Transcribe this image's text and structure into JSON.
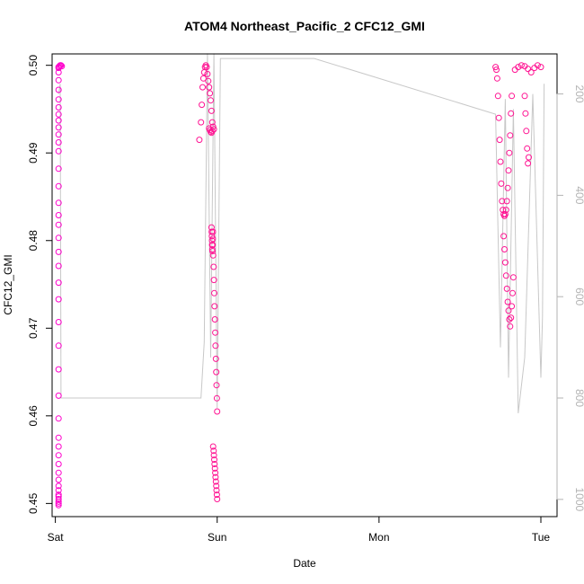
{
  "chart_data": {
    "type": "scatter",
    "title": "ATOM4 Northeast_Pacific_2 CFC12_GMI",
    "xlabel": "Date",
    "ylabel": "CFC12_GMI",
    "x_ticks": [
      "Sat",
      "Sun",
      "Mon",
      "Tue"
    ],
    "x_tick_days": [
      0,
      1,
      2,
      3
    ],
    "xlim": [
      -0.02,
      3.1
    ],
    "ylim": [
      0.4485,
      0.5013
    ],
    "y_ticks": [
      0.45,
      0.46,
      0.47,
      0.48,
      0.49,
      0.5
    ],
    "y2_ticks": [
      200,
      400,
      600,
      800,
      1000
    ],
    "y2lim": [
      1034,
      121
    ],
    "grid": false,
    "colors": {
      "point": "#ff1493",
      "point_alt": "#ff00cc",
      "altitude_line": "#c8c8c8",
      "axis": "#000000",
      "right_axis": "#b3b3b3"
    },
    "series": [
      {
        "marker": "open-circle",
        "segments": [
          {
            "x": [
              0.02,
              0.02,
              0.02,
              0.02,
              0.02,
              0.02,
              0.02,
              0.02,
              0.02,
              0.02,
              0.02,
              0.02,
              0.02,
              0.02,
              0.02,
              0.02,
              0.02,
              0.02,
              0.02,
              0.02,
              0.02,
              0.02,
              0.02,
              0.02,
              0.02,
              0.02,
              0.02,
              0.02,
              0.02,
              0.02,
              0.02,
              0.02,
              0.02,
              0.02,
              0.02,
              0.02,
              0.02,
              0.02,
              0.02,
              0.02,
              0.02
            ],
            "y": [
              0.4498,
              0.45,
              0.4502,
              0.4505,
              0.4508,
              0.451,
              0.4515,
              0.452,
              0.4527,
              0.4535,
              0.4545,
              0.4555,
              0.4565,
              0.4575,
              0.4597,
              0.4623,
              0.4653,
              0.468,
              0.4707,
              0.4733,
              0.4752,
              0.4771,
              0.4787,
              0.4803,
              0.4818,
              0.4829,
              0.4843,
              0.4862,
              0.4882,
              0.4902,
              0.4912,
              0.4921,
              0.4929,
              0.4937,
              0.4944,
              0.4952,
              0.4961,
              0.4972,
              0.4983,
              0.4992,
              0.4998
            ]
          },
          {
            "x": [
              0.02,
              0.025,
              0.03,
              0.035,
              0.04
            ],
            "y": [
              0.4997,
              0.4999,
              0.5,
              0.5,
              0.4999
            ]
          },
          {
            "x": [
              0.89,
              0.9,
              0.905,
              0.91,
              0.915,
              0.92,
              0.925,
              0.93,
              0.935,
              0.94,
              0.945,
              0.95,
              0.955,
              0.96,
              0.965,
              0.97
            ],
            "y": [
              0.4915,
              0.4935,
              0.4955,
              0.4975,
              0.4985,
              0.4992,
              0.4998,
              0.5,
              0.4998,
              0.499,
              0.4982,
              0.4975,
              0.4968,
              0.496,
              0.4948,
              0.4935
            ]
          },
          {
            "x": [
              0.95,
              0.955,
              0.96,
              0.965,
              0.97,
              0.975,
              0.98
            ],
            "y": [
              0.4928,
              0.4926,
              0.4924,
              0.4923,
              0.4925,
              0.493,
              0.4927
            ]
          },
          {
            "x": [
              0.965,
              0.966,
              0.967,
              0.968,
              0.969,
              0.97,
              0.971,
              0.972,
              0.973,
              0.974
            ],
            "y": [
              0.4815,
              0.481,
              0.4805,
              0.48,
              0.4795,
              0.479,
              0.4788,
              0.4795,
              0.4802,
              0.481
            ]
          },
          {
            "x": [
              0.975,
              0.978,
              0.98,
              0.982,
              0.984,
              0.986,
              0.988,
              0.99,
              0.992,
              0.994,
              0.996,
              0.998,
              1.0
            ],
            "y": [
              0.4783,
              0.477,
              0.4755,
              0.474,
              0.4725,
              0.471,
              0.4695,
              0.468,
              0.4665,
              0.465,
              0.4635,
              0.462,
              0.4605
            ]
          },
          {
            "x": [
              0.975,
              0.978,
              0.98,
              0.982,
              0.984,
              0.986,
              0.988,
              0.99,
              0.992,
              0.994,
              0.996,
              0.998,
              1.0
            ],
            "y": [
              0.4565,
              0.456,
              0.4555,
              0.455,
              0.4545,
              0.454,
              0.4535,
              0.453,
              0.4525,
              0.452,
              0.4515,
              0.451,
              0.4505
            ]
          },
          {
            "x": [
              2.72,
              2.725,
              2.73,
              2.735,
              2.74,
              2.745,
              2.75,
              2.755,
              2.76,
              2.765,
              2.77,
              2.775,
              2.78,
              2.785,
              2.79,
              2.795,
              2.8,
              2.805,
              2.81,
              2.815,
              2.82
            ],
            "y": [
              0.4998,
              0.4995,
              0.4985,
              0.4965,
              0.494,
              0.4915,
              0.489,
              0.4865,
              0.4845,
              0.4835,
              0.483,
              0.4828,
              0.483,
              0.4835,
              0.4845,
              0.486,
              0.488,
              0.49,
              0.492,
              0.4945,
              0.4965
            ]
          },
          {
            "x": [
              2.77,
              2.775,
              2.78,
              2.785,
              2.79,
              2.795,
              2.8,
              2.805,
              2.81,
              2.815,
              2.82,
              2.825,
              2.83
            ],
            "y": [
              0.4805,
              0.479,
              0.4775,
              0.476,
              0.4745,
              0.473,
              0.472,
              0.471,
              0.4702,
              0.4712,
              0.4725,
              0.474,
              0.4758
            ]
          },
          {
            "x": [
              2.84,
              2.86,
              2.88,
              2.9,
              2.92,
              2.94,
              2.96,
              2.98,
              3.0
            ],
            "y": [
              0.4995,
              0.4998,
              0.5,
              0.4999,
              0.4996,
              0.4992,
              0.4997,
              0.5,
              0.4998
            ]
          },
          {
            "x": [
              2.9,
              2.905,
              2.91,
              2.915,
              2.92,
              2.925
            ],
            "y": [
              0.4965,
              0.4945,
              0.4925,
              0.4905,
              0.4888,
              0.4895
            ]
          }
        ]
      }
    ],
    "altitude_line": {
      "label_axis": "right",
      "x": [
        0.02,
        0.03,
        0.035,
        0.04,
        0.9,
        0.92,
        0.94,
        0.96,
        0.98,
        1.0,
        1.02,
        1.6,
        2.72,
        2.75,
        2.78,
        2.8,
        2.83,
        2.86,
        2.9,
        2.95,
        3.0,
        3.01,
        3.02
      ],
      "y": [
        200,
        180,
        800,
        800,
        800,
        690,
        120,
        720,
        120,
        820,
        130,
        130,
        240,
        700,
        210,
        760,
        230,
        830,
        720,
        200,
        760,
        640,
        180
      ]
    }
  }
}
